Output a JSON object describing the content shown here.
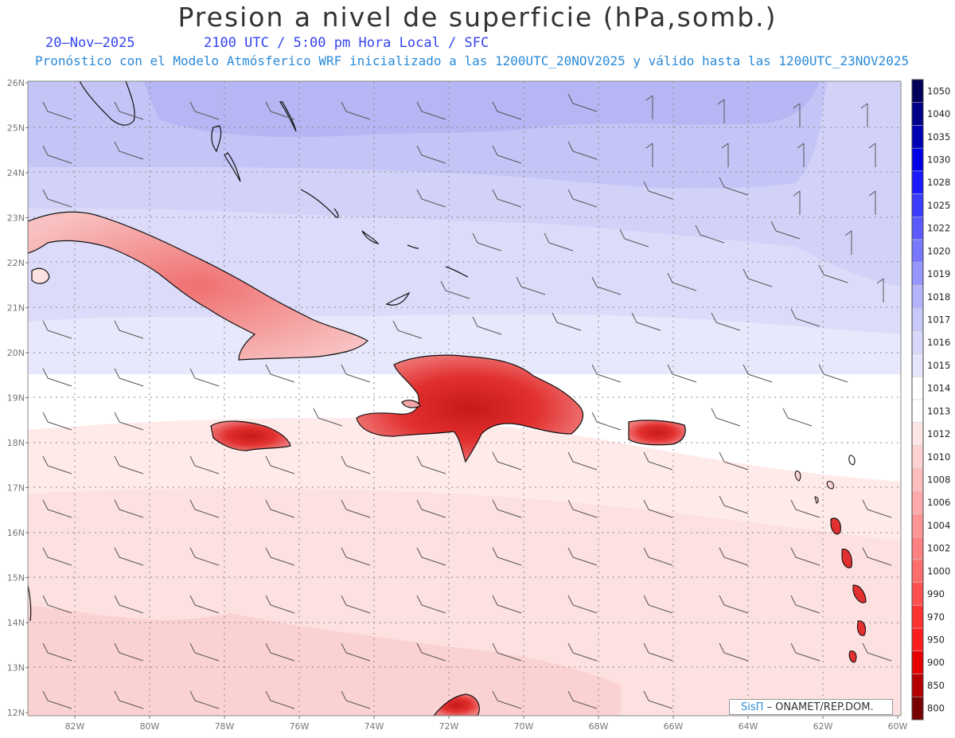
{
  "header": {
    "title": "Presion a nivel de superficie (hPa,somb.)",
    "date": "20–Nov–2025",
    "valid_time": "2100 UTC / 5:00 pm Hora Local / SFC",
    "subtitle": "Pronóstico con el Modelo Atmósferico WRF inicializado a las 1200UTC_20NOV2025 y válido hasta las  1200UTC_23NOV2025"
  },
  "map": {
    "lat_labels": [
      "26N",
      "25N",
      "24N",
      "23N",
      "22N",
      "21N",
      "20N",
      "19N",
      "18N",
      "17N",
      "16N",
      "15N",
      "14N",
      "13N",
      "12N"
    ],
    "lon_labels": [
      "82W",
      "80W",
      "78W",
      "76W",
      "74W",
      "72W",
      "70W",
      "68W",
      "66W",
      "64W",
      "62W",
      "60W"
    ],
    "lat_range": [
      12,
      26
    ],
    "lon_range": [
      -83.2,
      -60
    ],
    "grid": true,
    "fill_colors": {
      "band_1018": "#c4c4f6",
      "band_1017": "#d2d2f8",
      "band_1016": "#dcdcfa",
      "band_1015": "#e8e8fc",
      "band_1014": "#ffffff",
      "band_1013": "#ffeaea",
      "band_1012": "#fde0e0",
      "band_1010": "#fbd2d2",
      "land_low": "#f3a6a6",
      "land_high": "#e23030",
      "land_peak": "#c81818"
    }
  },
  "colorbar": {
    "levels": [
      "1050",
      "1040",
      "1035",
      "1030",
      "1028",
      "1025",
      "1022",
      "1020",
      "1019",
      "1018",
      "1017",
      "1016",
      "1015",
      "1014",
      "1013",
      "1012",
      "1010",
      "1008",
      "1006",
      "1004",
      "1002",
      "1000",
      "990",
      "970",
      "950",
      "900",
      "850",
      "800"
    ],
    "colors": [
      "#00005a",
      "#000088",
      "#0000b4",
      "#0000e6",
      "#1a1aff",
      "#3c3cff",
      "#5a5aff",
      "#7878ff",
      "#9696ff",
      "#b4b4fa",
      "#c8c8fa",
      "#d8d8fa",
      "#e6e6fc",
      "#ffffff",
      "#ffffff",
      "#ffe6e6",
      "#ffd2d2",
      "#ffbebe",
      "#ffaaaa",
      "#ff9696",
      "#ff8282",
      "#ff6e6e",
      "#ff5050",
      "#ff3232",
      "#ff1e1e",
      "#e60000",
      "#b40000",
      "#780000"
    ]
  },
  "credit": {
    "brand": "SisΠ",
    "text": " – ONAMET/REP.DOM."
  }
}
